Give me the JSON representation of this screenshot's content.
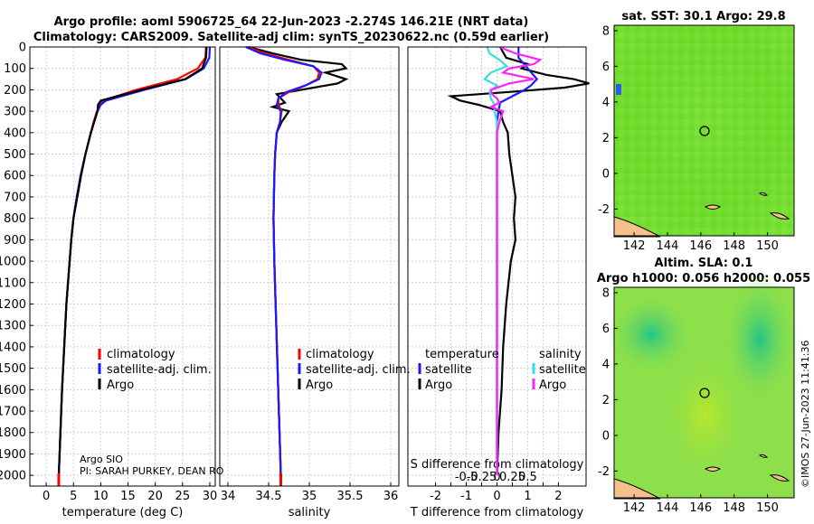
{
  "title": {
    "line1": "Argo profile: aoml 5906725_64 22-Jun-2023 -2.274S 146.21E (NRT data)",
    "line2": "Climatology: CARS2009. Satellite-adj clim: synTS_20230622.nc (0.59d earlier)"
  },
  "credits": {
    "institution": "Argo SIO",
    "pi": "PI: SARAH PURKEY, DEAN RO",
    "stamp": "©IMOS 27-Jun-2023 11:41:36"
  },
  "colors": {
    "argo": "#000000",
    "clim": "#ff0000",
    "satclim": "#1a1aff",
    "sal_sat": "#33e0e0",
    "sal_argo": "#ff22ff",
    "map_green": "#66dd22",
    "land": "#f4c08c"
  },
  "chart_data": [
    {
      "type": "line",
      "name": "temperature",
      "xlabel": "temperature (deg C)",
      "ylabel": "",
      "xlim": [
        -3,
        31
      ],
      "ylim": [
        0,
        2050
      ],
      "xticks": [
        "0",
        "5",
        "10",
        "15",
        "20",
        "25",
        "30"
      ],
      "yticks": [
        "0",
        "100",
        "200",
        "300",
        "400",
        "500",
        "600",
        "700",
        "800",
        "900",
        "1000",
        "1100",
        "1200",
        "1300",
        "1400",
        "1500",
        "1600",
        "1700",
        "1800",
        "1900",
        "2000"
      ],
      "legend": [
        "climatology",
        "satellite-adj. clim.",
        "Argo"
      ],
      "series": [
        {
          "name": "Argo",
          "depth": [
            0,
            50,
            100,
            150,
            200,
            250,
            270,
            300,
            350,
            400,
            500,
            600,
            700,
            800,
            900,
            1000,
            1200,
            1400,
            1600,
            1800,
            2000
          ],
          "values": [
            29.4,
            29.3,
            28.6,
            25.5,
            17.5,
            10.0,
            9.5,
            9.4,
            8.8,
            8.2,
            7.2,
            6.4,
            5.7,
            5.0,
            4.6,
            4.3,
            3.7,
            3.3,
            2.9,
            2.6,
            2.3
          ]
        },
        {
          "name": "climatology",
          "depth": [
            0,
            50,
            100,
            150,
            200,
            250,
            270,
            300,
            350,
            400,
            500,
            600,
            700,
            800,
            900,
            1000,
            1200,
            1400,
            1600,
            1800,
            2000
          ],
          "values": [
            29.3,
            29.2,
            27.8,
            24.0,
            16.5,
            10.5,
            9.8,
            9.3,
            8.7,
            8.2,
            7.2,
            6.3,
            5.6,
            5.0,
            4.6,
            4.3,
            3.7,
            3.3,
            2.9,
            2.6,
            2.3
          ]
        },
        {
          "name": "satellite-adj. clim.",
          "depth": [
            0,
            50,
            100,
            150,
            200,
            250,
            270,
            300,
            350,
            400,
            500,
            600,
            700,
            800,
            900,
            1000,
            1200,
            1400,
            1600,
            1800,
            2000
          ],
          "values": [
            30.0,
            29.9,
            28.9,
            25.6,
            18.0,
            11.0,
            10.0,
            9.4,
            8.8,
            8.2,
            7.2,
            6.3,
            5.6,
            5.0,
            4.6,
            4.3,
            3.7,
            3.3,
            2.9,
            2.6,
            2.3
          ]
        }
      ]
    },
    {
      "type": "line",
      "name": "salinity",
      "xlabel": "salinity",
      "xlim": [
        33.9,
        36.1
      ],
      "ylim": [
        0,
        2050
      ],
      "xticks": [
        "34",
        "34.5",
        "35",
        "35.5",
        "36"
      ],
      "legend": [
        "climatology",
        "satellite-adj. clim.",
        "Argo"
      ],
      "series": [
        {
          "name": "Argo",
          "depth": [
            0,
            30,
            60,
            80,
            100,
            120,
            150,
            170,
            200,
            220,
            240,
            260,
            280,
            300,
            350,
            400,
            500,
            600,
            800,
            1000,
            1500,
            2000
          ],
          "values": [
            34.25,
            34.55,
            34.9,
            35.4,
            35.45,
            35.2,
            35.45,
            35.35,
            34.9,
            34.6,
            34.65,
            34.7,
            34.55,
            34.75,
            34.66,
            34.6,
            34.58,
            34.57,
            34.56,
            34.57,
            34.61,
            34.65
          ]
        },
        {
          "name": "climatology",
          "depth": [
            0,
            30,
            60,
            90,
            120,
            150,
            180,
            210,
            240,
            270,
            300,
            350,
            400,
            500,
            600,
            800,
            1000,
            1500,
            2000
          ],
          "values": [
            34.25,
            34.45,
            34.75,
            35.05,
            35.12,
            35.1,
            34.95,
            34.75,
            34.62,
            34.62,
            34.66,
            34.64,
            34.6,
            34.58,
            34.57,
            34.56,
            34.57,
            34.61,
            34.65
          ]
        },
        {
          "name": "satellite-adj. clim.",
          "depth": [
            0,
            30,
            60,
            90,
            120,
            150,
            180,
            210,
            240,
            270,
            300,
            350,
            400,
            500,
            600,
            800,
            1000,
            1500,
            2000
          ],
          "values": [
            34.22,
            34.4,
            34.7,
            35.05,
            35.15,
            35.12,
            34.95,
            34.72,
            34.62,
            34.6,
            34.65,
            34.64,
            34.6,
            34.58,
            34.57,
            34.56,
            34.57,
            34.61,
            34.65
          ]
        }
      ]
    },
    {
      "type": "line",
      "name": "difference",
      "xlabel": "T difference from climatology",
      "inner_label": "S difference from climatology",
      "xlim": [
        -2.9,
        2.9
      ],
      "ylim": [
        0,
        2050
      ],
      "xticks": [
        "-2",
        "-1.5",
        "-1",
        "-0.5",
        "0",
        "0.5",
        "1",
        "1.5",
        "2"
      ],
      "xticks_salinity": [
        "-0.5",
        "-0.25",
        "0",
        "0.25",
        "0.5"
      ],
      "legend_temperature_title": "temperature",
      "legend_salinity_title": "salinity",
      "legend_temperature": [
        "satellite",
        "Argo"
      ],
      "legend_salinity": [
        "satellite",
        "Argo"
      ],
      "series": [
        {
          "name": "T Argo",
          "depth": [
            0,
            50,
            80,
            100,
            130,
            150,
            170,
            190,
            210,
            230,
            250,
            270,
            300,
            350,
            400,
            500,
            600,
            700,
            800,
            900,
            1000,
            1200,
            1400,
            1600,
            1800,
            2000
          ],
          "values": [
            0.1,
            0.3,
            1.0,
            0.8,
            1.6,
            2.5,
            3.0,
            2.2,
            0.4,
            -1.5,
            -1.2,
            -0.6,
            0.1,
            0.2,
            0.35,
            0.4,
            0.5,
            0.6,
            0.55,
            0.6,
            0.45,
            0.3,
            0.2,
            0.15,
            0.05,
            0
          ]
        },
        {
          "name": "T satellite",
          "depth": [
            0,
            50,
            100,
            150,
            180,
            200,
            230,
            260,
            300,
            350,
            400,
            500,
            700,
            900,
            1200,
            1600,
            2000
          ],
          "values": [
            0.7,
            0.7,
            1.0,
            1.3,
            1.1,
            0.9,
            0.5,
            0.1,
            0.05,
            0,
            0,
            0,
            0,
            0,
            0,
            0,
            0
          ]
        },
        {
          "name": "S satellite",
          "depth": [
            0,
            30,
            60,
            90,
            120,
            150,
            180,
            210,
            240,
            270,
            300,
            350,
            400,
            500,
            700,
            1000,
            1500,
            2000
          ],
          "values": [
            -0.08,
            -0.06,
            0.02,
            0.08,
            -0.05,
            -0.1,
            0,
            -0.06,
            -0.05,
            -0.02,
            -0.02,
            0,
            0,
            0,
            0,
            0,
            0,
            0
          ]
        },
        {
          "name": "S Argo",
          "depth": [
            0,
            30,
            60,
            80,
            100,
            120,
            150,
            170,
            200,
            220,
            240,
            260,
            280,
            300,
            350,
            400,
            500,
            700,
            1000,
            1500,
            2000
          ],
          "values": [
            0.02,
            0.15,
            0.35,
            0.3,
            0.1,
            0.05,
            0.3,
            0.1,
            -0.05,
            -0.04,
            0,
            0.02,
            -0.05,
            0.05,
            0.02,
            0,
            0,
            0,
            0,
            0,
            0
          ]
        }
      ]
    },
    {
      "type": "heatmap",
      "name": "sst-map",
      "title": "sat. SST: 30.1 Argo: 29.8",
      "xlim": [
        140.8,
        151.6
      ],
      "ylim": [
        -3.5,
        8.3
      ],
      "xticks": [
        "142",
        "144",
        "146",
        "148",
        "150"
      ],
      "yticks": [
        "8",
        "6",
        "4",
        "2",
        "0",
        "-2"
      ],
      "marker": {
        "lon": 146.21,
        "lat": -2.274
      }
    },
    {
      "type": "heatmap",
      "name": "sla-map",
      "title_line1": "Altim. SLA: 0.1",
      "title_line2": "Argo h1000: 0.056 h2000: 0.055",
      "xlim": [
        140.8,
        151.6
      ],
      "ylim": [
        -3.5,
        8.3
      ],
      "xticks": [
        "142",
        "144",
        "146",
        "148",
        "150"
      ],
      "yticks": [
        "8",
        "6",
        "4",
        "2",
        "0",
        "-2"
      ],
      "marker": {
        "lon": 146.21,
        "lat": -2.274
      }
    }
  ]
}
